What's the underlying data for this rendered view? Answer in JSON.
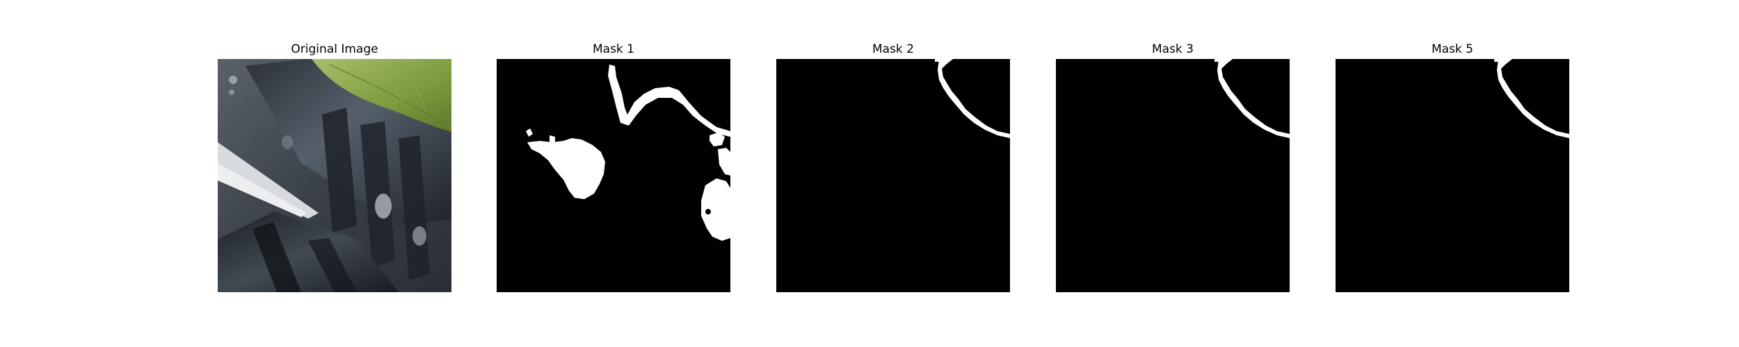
{
  "figure": {
    "panels": [
      {
        "title": "Original Image",
        "kind": "photo"
      },
      {
        "title": "Mask 1",
        "kind": "mask"
      },
      {
        "title": "Mask 2",
        "kind": "mask"
      },
      {
        "title": "Mask 3",
        "kind": "mask"
      },
      {
        "title": "Mask 5",
        "kind": "mask"
      }
    ]
  },
  "colors": {
    "background": "#ffffff",
    "mask_background": "#000000",
    "mask_foreground": "#ffffff",
    "leaf_green": "#7d9a3e",
    "dark_metal": "#2b2f36",
    "mid_metal": "#4a505a",
    "light_metal": "#c9ccd1"
  }
}
